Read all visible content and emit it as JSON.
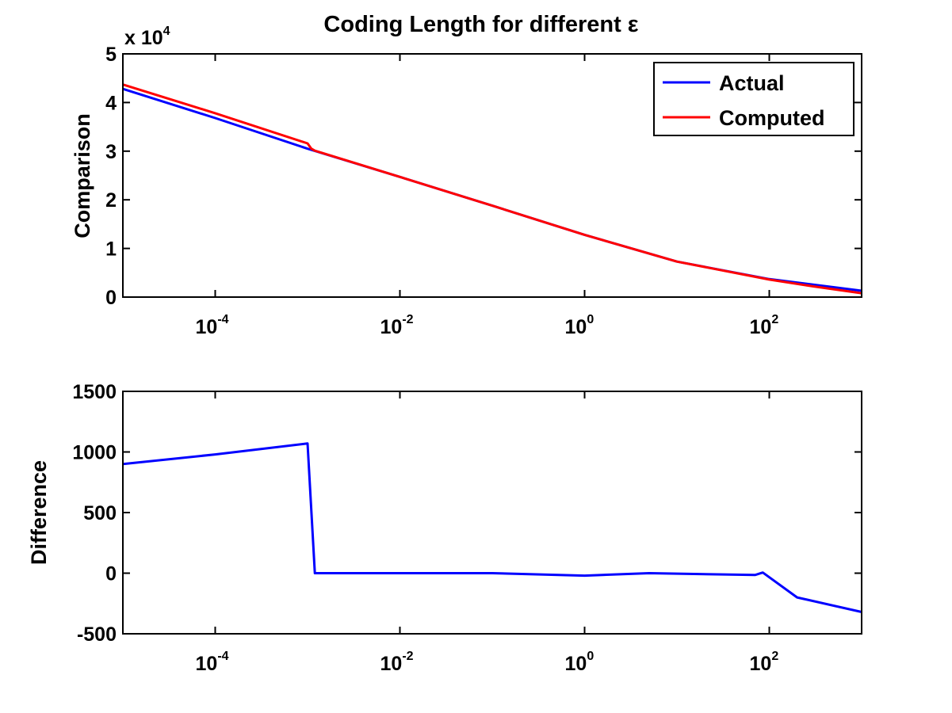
{
  "chart_data": [
    {
      "type": "line",
      "title": "Coding Length for different ε",
      "ylabel": "Comparison",
      "xlabel": "",
      "xscale": "log",
      "xlim": [
        1e-05,
        1000
      ],
      "ylim": [
        0,
        5
      ],
      "y_multiplier_label": "x 10",
      "y_multiplier_exponent": "4",
      "yticks": [
        "0",
        "1",
        "2",
        "3",
        "4",
        "5"
      ],
      "xticks": [
        {
          "value": 0.0001,
          "base": "10",
          "exp": "-4"
        },
        {
          "value": 0.01,
          "base": "10",
          "exp": "-2"
        },
        {
          "value": 1,
          "base": "10",
          "exp": "0"
        },
        {
          "value": 100,
          "base": "10",
          "exp": "2"
        }
      ],
      "legend_position": "top-right",
      "grid": false,
      "series": [
        {
          "name": "Actual",
          "color": "#0000ff",
          "points": [
            [
              1e-05,
              4.28
            ],
            [
              0.0001,
              3.68
            ],
            [
              0.001,
              3.05
            ],
            [
              0.01,
              2.47
            ],
            [
              0.1,
              1.88
            ],
            [
              1,
              1.28
            ],
            [
              10,
              0.73
            ],
            [
              100,
              0.37
            ],
            [
              1000,
              0.13
            ]
          ]
        },
        {
          "name": "Computed",
          "color": "#ff0000",
          "points": [
            [
              1e-05,
              4.37
            ],
            [
              0.0001,
              3.78
            ],
            [
              0.001,
              3.16
            ],
            [
              0.0011,
              3.05
            ],
            [
              0.0012,
              3.01
            ],
            [
              0.01,
              2.47
            ],
            [
              0.1,
              1.88
            ],
            [
              1,
              1.28
            ],
            [
              10,
              0.73
            ],
            [
              100,
              0.36
            ],
            [
              300,
              0.22
            ],
            [
              1000,
              0.08
            ]
          ]
        }
      ]
    },
    {
      "type": "line",
      "title": "",
      "ylabel": "Difference",
      "xlabel": "",
      "xscale": "log",
      "xlim": [
        1e-05,
        1000
      ],
      "ylim": [
        -500,
        1500
      ],
      "yticks": [
        "-500",
        "0",
        "500",
        "1000",
        "1500"
      ],
      "xticks": [
        {
          "value": 0.0001,
          "base": "10",
          "exp": "-4"
        },
        {
          "value": 0.01,
          "base": "10",
          "exp": "-2"
        },
        {
          "value": 1,
          "base": "10",
          "exp": "0"
        },
        {
          "value": 100,
          "base": "10",
          "exp": "2"
        }
      ],
      "grid": false,
      "series": [
        {
          "color": "#0000ff",
          "points": [
            [
              1e-05,
              900
            ],
            [
              0.0001,
              980
            ],
            [
              0.001,
              1070
            ],
            [
              0.0012,
              0
            ],
            [
              0.1,
              0
            ],
            [
              1,
              -20
            ],
            [
              5,
              0
            ],
            [
              70,
              -15
            ],
            [
              85,
              5
            ],
            [
              200,
              -200
            ],
            [
              1000,
              -320
            ]
          ]
        }
      ]
    }
  ]
}
